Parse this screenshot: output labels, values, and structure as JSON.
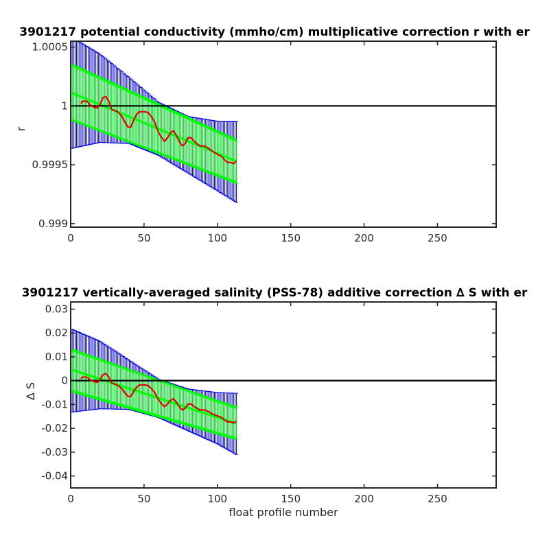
{
  "chart_data": [
    {
      "type": "line",
      "title": "3901217 potential conductivity (mmho/cm) multiplicative correction r with er",
      "xlabel": "",
      "ylabel": "r",
      "xlim": [
        0,
        290
      ],
      "ylim": [
        0.99897,
        1.00055
      ],
      "xticks": [
        "0",
        "50",
        "100",
        "150",
        "200",
        "250"
      ],
      "xtick_values": [
        0,
        50,
        100,
        150,
        200,
        250
      ],
      "yticks": [
        "0.999",
        "0.9995",
        "1",
        "1.0005"
      ],
      "ytick_values": [
        0.999,
        0.9995,
        1.0,
        1.0005
      ],
      "reference_line": 1.0,
      "profile_range": [
        1,
        113
      ],
      "blue_errorbar_upper": [
        [
          1,
          1.00058
        ],
        [
          20,
          1.00044
        ],
        [
          40,
          1.00024
        ],
        [
          60,
          1.00003
        ],
        [
          80,
          0.99991
        ],
        [
          100,
          0.99987
        ],
        [
          113,
          0.99987
        ]
      ],
      "blue_errorbar_lower": [
        [
          1,
          0.99964
        ],
        [
          20,
          0.99969
        ],
        [
          40,
          0.99968
        ],
        [
          60,
          0.99958
        ],
        [
          80,
          0.99943
        ],
        [
          100,
          0.99928
        ],
        [
          113,
          0.99918
        ]
      ],
      "green_errorbar_upper": [
        [
          1,
          1.00034
        ],
        [
          113,
          0.9997
        ]
      ],
      "green_errorbar_lower": [
        [
          1,
          0.99988
        ],
        [
          113,
          0.99934
        ]
      ],
      "green_fit_upper": [
        [
          1,
          1.00035
        ],
        [
          113,
          0.99971
        ]
      ],
      "green_fit_center": [
        [
          1,
          1.00011
        ],
        [
          113,
          0.99953
        ]
      ],
      "green_fit_lower": [
        [
          1,
          0.99988
        ],
        [
          113,
          0.99935
        ]
      ],
      "colors": {
        "blue_bars": "#0000e0",
        "green": "#00ff00",
        "red_series": "#e00000",
        "reference": "#000000"
      },
      "series": [
        {
          "values": [
            [
              7,
              1.00002
            ],
            [
              8,
              1.00004
            ],
            [
              11,
              1.00004
            ],
            [
              14,
              1.0
            ],
            [
              16,
              0.99999
            ],
            [
              18,
              0.99998
            ],
            [
              20,
              1.00001
            ],
            [
              22,
              1.00007
            ],
            [
              24,
              1.00008
            ],
            [
              26,
              1.00004
            ],
            [
              28,
              0.99997
            ],
            [
              32,
              0.99995
            ],
            [
              35,
              0.99991
            ],
            [
              37,
              0.99986
            ],
            [
              39,
              0.99982
            ],
            [
              41,
              0.99982
            ],
            [
              43,
              0.99988
            ],
            [
              45,
              0.99993
            ],
            [
              47,
              0.99995
            ],
            [
              49,
              0.99995
            ],
            [
              51,
              0.99995
            ],
            [
              53,
              0.99994
            ],
            [
              55,
              0.99991
            ],
            [
              57,
              0.99987
            ],
            [
              59,
              0.9998
            ],
            [
              61,
              0.99975
            ],
            [
              62,
              0.99973
            ],
            [
              64,
              0.9997
            ],
            [
              66,
              0.99973
            ],
            [
              68,
              0.99977
            ],
            [
              70,
              0.99979
            ],
            [
              72,
              0.99975
            ],
            [
              74,
              0.9997
            ],
            [
              76,
              0.99966
            ],
            [
              78,
              0.99968
            ],
            [
              80,
              0.99973
            ],
            [
              82,
              0.99973
            ],
            [
              85,
              0.99969
            ],
            [
              88,
              0.99966
            ],
            [
              91,
              0.99966
            ],
            [
              94,
              0.99964
            ],
            [
              97,
              0.99961
            ],
            [
              100,
              0.99959
            ],
            [
              103,
              0.99957
            ],
            [
              105,
              0.99954
            ],
            [
              107,
              0.99952
            ],
            [
              109,
              0.99952
            ],
            [
              111,
              0.99951
            ],
            [
              113,
              0.99953
            ]
          ]
        }
      ]
    },
    {
      "type": "line",
      "title": "3901217 vertically-averaged salinity (PSS-78) additive correction ∆ S with er",
      "xlabel": "float profile number",
      "ylabel": "∆ S",
      "xlim": [
        0,
        290
      ],
      "ylim": [
        -0.045,
        0.033
      ],
      "xticks": [
        "0",
        "50",
        "100",
        "150",
        "200",
        "250"
      ],
      "xtick_values": [
        0,
        50,
        100,
        150,
        200,
        250
      ],
      "yticks": [
        "-0.04",
        "-0.03",
        "-0.02",
        "-0.01",
        "0",
        "0.01",
        "0.02",
        "0.03"
      ],
      "ytick_values": [
        -0.04,
        -0.03,
        -0.02,
        -0.01,
        0,
        0.01,
        0.02,
        0.03
      ],
      "reference_line": 0,
      "profile_range": [
        1,
        113
      ],
      "blue_errorbar_upper": [
        [
          1,
          0.0215
        ],
        [
          20,
          0.0165
        ],
        [
          40,
          0.0085
        ],
        [
          60,
          0.0005
        ],
        [
          80,
          -0.0035
        ],
        [
          100,
          -0.005
        ],
        [
          113,
          -0.0053
        ]
      ],
      "blue_errorbar_lower": [
        [
          1,
          -0.0132
        ],
        [
          20,
          -0.0118
        ],
        [
          40,
          -0.0121
        ],
        [
          60,
          -0.0155
        ],
        [
          80,
          -0.021
        ],
        [
          100,
          -0.0265
        ],
        [
          113,
          -0.031
        ]
      ],
      "green_errorbar_upper": [
        [
          1,
          0.0125
        ],
        [
          113,
          -0.011
        ]
      ],
      "green_errorbar_lower": [
        [
          1,
          -0.004
        ],
        [
          113,
          -0.024
        ]
      ],
      "green_fit_upper": [
        [
          1,
          0.013
        ],
        [
          113,
          -0.0115
        ]
      ],
      "green_fit_center": [
        [
          1,
          0.0045
        ],
        [
          113,
          -0.018
        ]
      ],
      "green_fit_lower": [
        [
          1,
          -0.0045
        ],
        [
          113,
          -0.0245
        ]
      ],
      "colors": {
        "blue_bars": "#0000e0",
        "green": "#00ff00",
        "red_series": "#e00000",
        "reference": "#000000"
      },
      "series": [
        {
          "values": [
            [
              7,
              0.0008
            ],
            [
              8,
              0.0015
            ],
            [
              11,
              0.0015
            ],
            [
              14,
              0.0
            ],
            [
              16,
              -0.0004
            ],
            [
              18,
              -0.0008
            ],
            [
              20,
              0.0004
            ],
            [
              22,
              0.0025
            ],
            [
              24,
              0.003
            ],
            [
              26,
              0.0015
            ],
            [
              28,
              -0.001
            ],
            [
              32,
              -0.002
            ],
            [
              35,
              -0.0034
            ],
            [
              37,
              -0.0052
            ],
            [
              39,
              -0.0066
            ],
            [
              41,
              -0.0066
            ],
            [
              43,
              -0.0045
            ],
            [
              45,
              -0.0027
            ],
            [
              47,
              -0.0018
            ],
            [
              49,
              -0.0018
            ],
            [
              51,
              -0.0018
            ],
            [
              53,
              -0.0022
            ],
            [
              55,
              -0.0033
            ],
            [
              57,
              -0.0047
            ],
            [
              59,
              -0.0072
            ],
            [
              61,
              -0.009
            ],
            [
              62,
              -0.0098
            ],
            [
              64,
              -0.0109
            ],
            [
              66,
              -0.0098
            ],
            [
              68,
              -0.0083
            ],
            [
              70,
              -0.0076
            ],
            [
              72,
              -0.009
            ],
            [
              74,
              -0.0109
            ],
            [
              76,
              -0.0123
            ],
            [
              78,
              -0.0116
            ],
            [
              80,
              -0.0098
            ],
            [
              82,
              -0.0098
            ],
            [
              85,
              -0.0112
            ],
            [
              88,
              -0.0123
            ],
            [
              91,
              -0.0123
            ],
            [
              94,
              -0.013
            ],
            [
              97,
              -0.0141
            ],
            [
              100,
              -0.0148
            ],
            [
              103,
              -0.0155
            ],
            [
              105,
              -0.0166
            ],
            [
              107,
              -0.0173
            ],
            [
              109,
              -0.0173
            ],
            [
              111,
              -0.0177
            ],
            [
              113,
              -0.017
            ]
          ]
        }
      ]
    }
  ]
}
